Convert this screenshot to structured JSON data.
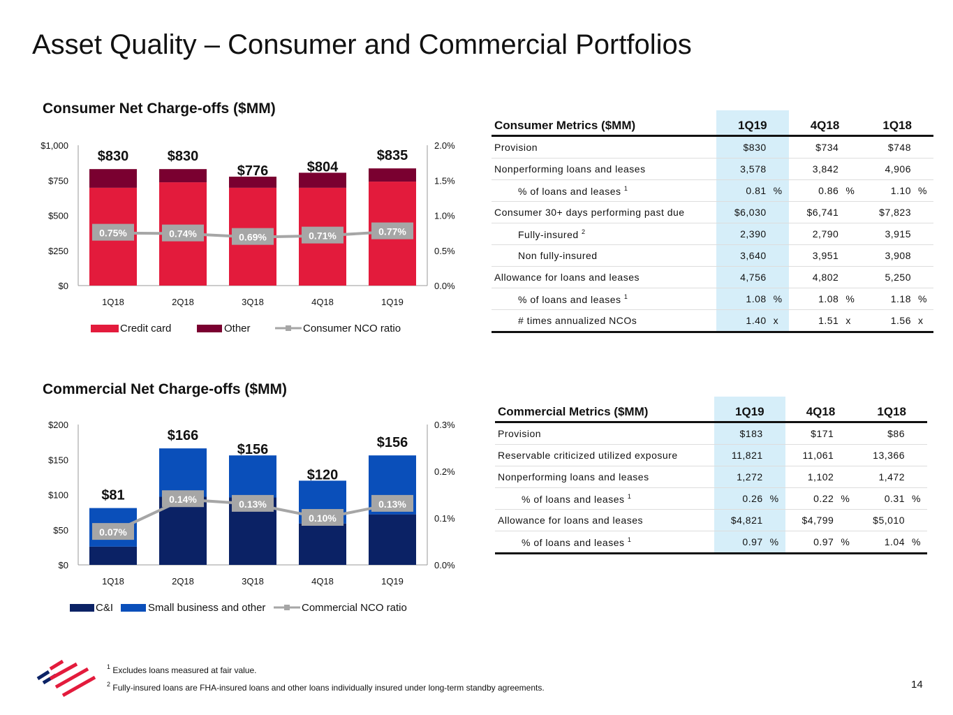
{
  "title": "Asset Quality – Consumer and Commercial Portfolios",
  "page_number": "14",
  "colors": {
    "credit_card": "#e31b3c",
    "other": "#7a0030",
    "ci": "#0b2265",
    "small_business": "#0a4fba",
    "ratio_line": "#a6a6a6",
    "highlight": "#d6eef9"
  },
  "chart_data": [
    {
      "type": "bar",
      "stacked": true,
      "title": "Consumer Net Charge-offs ($MM)",
      "categories": [
        "1Q18",
        "2Q18",
        "3Q18",
        "4Q18",
        "1Q19"
      ],
      "series": [
        {
          "name": "Credit card",
          "values": [
            697,
            736,
            697,
            697,
            741
          ]
        },
        {
          "name": "Other",
          "values": [
            133,
            94,
            79,
            107,
            94
          ]
        }
      ],
      "totals": [
        830,
        830,
        776,
        804,
        835
      ],
      "total_labels": [
        "$830",
        "$830",
        "$776",
        "$804",
        "$835"
      ],
      "line_series": {
        "name": "Consumer NCO ratio",
        "values": [
          0.75,
          0.74,
          0.69,
          0.71,
          0.77
        ],
        "labels": [
          "0.75%",
          "0.74%",
          "0.69%",
          "0.71%",
          "0.77%"
        ]
      },
      "ylim": [
        0,
        1000
      ],
      "yticks": [
        "$0",
        "$250",
        "$500",
        "$750",
        "$1,000"
      ],
      "ylim_right": [
        0,
        2.0
      ],
      "yticks_right": [
        "0.0%",
        "0.5%",
        "1.0%",
        "1.5%",
        "2.0%"
      ],
      "legend": [
        "Credit card",
        "Other",
        "Consumer NCO ratio"
      ],
      "legend_position": "bottom",
      "grid": false
    },
    {
      "type": "bar",
      "stacked": true,
      "title": "Commercial Net Charge-offs ($MM)",
      "categories": [
        "1Q18",
        "2Q18",
        "3Q18",
        "4Q18",
        "1Q19"
      ],
      "series": [
        {
          "name": "C&I",
          "values": [
            26,
            97,
            96,
            59,
            72
          ]
        },
        {
          "name": "Small business and other",
          "values": [
            55,
            69,
            60,
            61,
            84
          ]
        }
      ],
      "totals": [
        81,
        166,
        156,
        120,
        156
      ],
      "total_labels": [
        "$81",
        "$166",
        "$156",
        "$120",
        "$156"
      ],
      "line_series": {
        "name": "Commercial NCO ratio",
        "values": [
          0.07,
          0.14,
          0.13,
          0.1,
          0.13
        ],
        "labels": [
          "0.07%",
          "0.14%",
          "0.13%",
          "0.10%",
          "0.13%"
        ]
      },
      "ylim": [
        0,
        200
      ],
      "yticks": [
        "$0",
        "$50",
        "$100",
        "$150",
        "$200"
      ],
      "ylim_right": [
        0,
        0.3
      ],
      "yticks_right": [
        "0.0%",
        "0.1%",
        "0.2%",
        "0.3%"
      ],
      "legend": [
        "C&I",
        "Small business and other",
        "Commercial NCO ratio"
      ],
      "legend_position": "bottom",
      "grid": false
    }
  ],
  "consumer_table": {
    "header": [
      "Consumer Metrics ($MM)",
      "1Q19",
      "4Q18",
      "1Q18"
    ],
    "rows": [
      {
        "label": "Provision",
        "indent": false,
        "sup": "",
        "values": [
          "$830",
          "$734",
          "$748"
        ],
        "unit": ""
      },
      {
        "label": "Nonperforming loans and leases",
        "indent": false,
        "sup": "",
        "values": [
          "3,578",
          "3,842",
          "4,906"
        ],
        "unit": ""
      },
      {
        "label": "% of loans and leases",
        "indent": true,
        "sup": "1",
        "values": [
          "0.81",
          "0.86",
          "1.10"
        ],
        "unit": "%"
      },
      {
        "label": "Consumer 30+ days performing past due",
        "indent": false,
        "sup": "",
        "values": [
          "$6,030",
          "$6,741",
          "$7,823"
        ],
        "unit": ""
      },
      {
        "label": "Fully-insured",
        "indent": true,
        "sup": "2",
        "values": [
          "2,390",
          "2,790",
          "3,915"
        ],
        "unit": ""
      },
      {
        "label": "Non fully-insured",
        "indent": true,
        "sup": "",
        "values": [
          "3,640",
          "3,951",
          "3,908"
        ],
        "unit": ""
      },
      {
        "label": "Allowance for loans and leases",
        "indent": false,
        "sup": "",
        "values": [
          "4,756",
          "4,802",
          "5,250"
        ],
        "unit": ""
      },
      {
        "label": "% of loans and leases",
        "indent": true,
        "sup": "1",
        "values": [
          "1.08",
          "1.08",
          "1.18"
        ],
        "unit": "%"
      },
      {
        "label": "# times annualized NCOs",
        "indent": true,
        "sup": "",
        "values": [
          "1.40",
          "1.51",
          "1.56"
        ],
        "unit": "x"
      }
    ]
  },
  "commercial_table": {
    "header": [
      "Commercial Metrics ($MM)",
      "1Q19",
      "4Q18",
      "1Q18"
    ],
    "rows": [
      {
        "label": "Provision",
        "indent": false,
        "sup": "",
        "values": [
          "$183",
          "$171",
          "$86"
        ],
        "unit": ""
      },
      {
        "label": "Reservable criticized utilized exposure",
        "indent": false,
        "sup": "",
        "values": [
          "11,821",
          "11,061",
          "13,366"
        ],
        "unit": ""
      },
      {
        "label": "Nonperforming loans and leases",
        "indent": false,
        "sup": "",
        "values": [
          "1,272",
          "1,102",
          "1,472"
        ],
        "unit": ""
      },
      {
        "label": "% of loans and leases",
        "indent": true,
        "sup": "1",
        "values": [
          "0.26",
          "0.22",
          "0.31"
        ],
        "unit": "%"
      },
      {
        "label": "Allowance for loans and leases",
        "indent": false,
        "sup": "",
        "values": [
          "$4,821",
          "$4,799",
          "$5,010"
        ],
        "unit": ""
      },
      {
        "label": "% of loans and leases",
        "indent": true,
        "sup": "1",
        "values": [
          "0.97",
          "0.97",
          "1.04"
        ],
        "unit": "%"
      }
    ]
  },
  "footnotes": [
    {
      "sup": "1",
      "text": "Excludes loans measured at fair value."
    },
    {
      "sup": "2",
      "text": "Fully-insured loans are FHA-insured loans and other loans individually insured under long-term standby agreements."
    }
  ]
}
